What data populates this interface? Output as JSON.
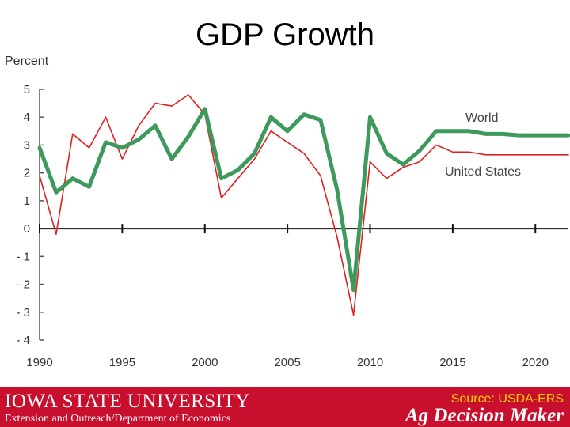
{
  "title": "GDP Growth",
  "chart_data": {
    "type": "line",
    "title": "GDP Growth",
    "ylabel": "Percent",
    "xlabel": "",
    "ylim": [
      -4,
      5
    ],
    "xlim": [
      1990,
      2022
    ],
    "yticks": [
      5,
      4,
      3,
      2,
      1,
      0,
      -1,
      -2,
      -3,
      -4
    ],
    "ytick_labels": [
      "5",
      "4",
      "3",
      "2",
      "1",
      "0",
      "- 1",
      "- 2",
      "- 3",
      "- 4"
    ],
    "xticks": [
      1990,
      1995,
      2000,
      2005,
      2010,
      2015,
      2020
    ],
    "series": [
      {
        "name": "World",
        "color": "#3d9a5c",
        "x": [
          1990,
          1991,
          1992,
          1993,
          1994,
          1995,
          1996,
          1997,
          1998,
          1999,
          2000,
          2001,
          2002,
          2003,
          2004,
          2005,
          2006,
          2007,
          2008,
          2009,
          2010,
          2011,
          2012,
          2013,
          2014,
          2015,
          2016,
          2017,
          2018,
          2019,
          2020,
          2021,
          2022
        ],
        "values": [
          2.9,
          1.3,
          1.8,
          1.5,
          3.1,
          2.9,
          3.2,
          3.7,
          2.5,
          3.3,
          4.3,
          1.8,
          2.1,
          2.7,
          4.0,
          3.5,
          4.1,
          3.9,
          1.4,
          -2.2,
          4.0,
          2.7,
          2.3,
          2.8,
          3.5,
          3.5,
          3.5,
          3.4,
          3.4,
          3.35,
          3.35,
          3.35,
          3.35
        ]
      },
      {
        "name": "United States",
        "color": "#e02020",
        "x": [
          1990,
          1991,
          1992,
          1993,
          1994,
          1995,
          1996,
          1997,
          1998,
          1999,
          2000,
          2001,
          2002,
          2003,
          2004,
          2005,
          2006,
          2007,
          2008,
          2009,
          2010,
          2011,
          2012,
          2013,
          2014,
          2015,
          2016,
          2017,
          2018,
          2019,
          2020,
          2021,
          2022
        ],
        "values": [
          1.9,
          -0.2,
          3.4,
          2.9,
          4.0,
          2.5,
          3.7,
          4.5,
          4.4,
          4.8,
          4.1,
          1.1,
          1.8,
          2.5,
          3.5,
          3.1,
          2.7,
          1.9,
          -0.3,
          -3.1,
          2.4,
          1.8,
          2.2,
          2.4,
          3.0,
          2.75,
          2.75,
          2.65,
          2.65,
          2.65,
          2.65,
          2.65,
          2.65
        ]
      }
    ]
  },
  "footer": {
    "university": "IOWA STATE UNIVERSITY",
    "department": "Extension and Outreach/Department of Economics",
    "source": "Source: USDA-ERS",
    "program": "Ag Decision Maker"
  }
}
